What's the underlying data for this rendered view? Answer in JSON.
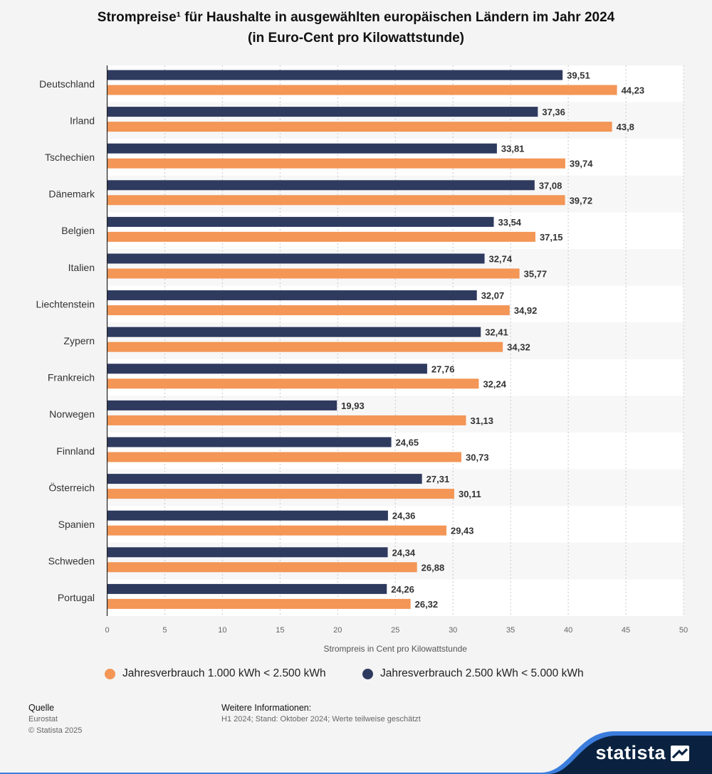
{
  "header": {
    "title_line1": "Strompreise¹ für Haushalte in ausgewählten europäischen Ländern im Jahr 2024",
    "title_line2": "(in Euro-Cent pro Kilowattstunde)"
  },
  "chart_data": {
    "type": "bar",
    "orientation": "horizontal",
    "categories": [
      "Deutschland",
      "Irland",
      "Tschechien",
      "Dänemark",
      "Belgien",
      "Italien",
      "Liechtenstein",
      "Zypern",
      "Frankreich",
      "Norwegen",
      "Finnland",
      "Österreich",
      "Spanien",
      "Schweden",
      "Portugal"
    ],
    "series": [
      {
        "name": "Jahresverbrauch 2.500 kWh < 5.000 kWh",
        "color": "#2f3a5f",
        "values": [
          39.51,
          37.36,
          33.81,
          37.08,
          33.54,
          32.74,
          32.07,
          32.41,
          27.76,
          19.93,
          24.65,
          27.31,
          24.36,
          24.34,
          24.26
        ],
        "labels": [
          "39,51",
          "37,36",
          "33,81",
          "37,08",
          "33,54",
          "32,74",
          "32,07",
          "32,41",
          "27,76",
          "19,93",
          "24,65",
          "27,31",
          "24,36",
          "24,34",
          "24,26"
        ]
      },
      {
        "name": "Jahresverbrauch 1.000 kWh < 2.500 kWh",
        "color": "#f39656",
        "values": [
          44.23,
          43.8,
          39.74,
          39.72,
          37.15,
          35.77,
          34.92,
          34.32,
          32.24,
          31.13,
          30.73,
          30.11,
          29.43,
          26.88,
          26.32
        ],
        "labels": [
          "44,23",
          "43,8",
          "39,74",
          "39,72",
          "37,15",
          "35,77",
          "34,92",
          "34,32",
          "32,24",
          "31,13",
          "30,73",
          "30,11",
          "29,43",
          "26,88",
          "26,32"
        ]
      }
    ],
    "xlabel": "Strompreis in Cent pro Kilowattstunde",
    "xlim": [
      0,
      50
    ],
    "xticks": [
      "0",
      "5",
      "10",
      "15",
      "20",
      "25",
      "30",
      "35",
      "40",
      "45",
      "50"
    ],
    "grid": true,
    "legend_position": "bottom"
  },
  "legend": [
    {
      "label": "Jahresverbrauch 1.000 kWh < 2.500 kWh",
      "color": "#f39656"
    },
    {
      "label": "Jahresverbrauch 2.500 kWh < 5.000 kWh",
      "color": "#2f3a5f"
    }
  ],
  "footer": {
    "source_heading": "Quelle",
    "source": "Eurostat",
    "copyright": "© Statista 2025",
    "info_heading": "Weitere Informationen:",
    "info": "H1 2024; Stand: Oktober 2024; Werte teilweise geschätzt"
  },
  "brand": {
    "name": "statista",
    "color": "#0a2240",
    "accent": "#3b7ddd"
  }
}
